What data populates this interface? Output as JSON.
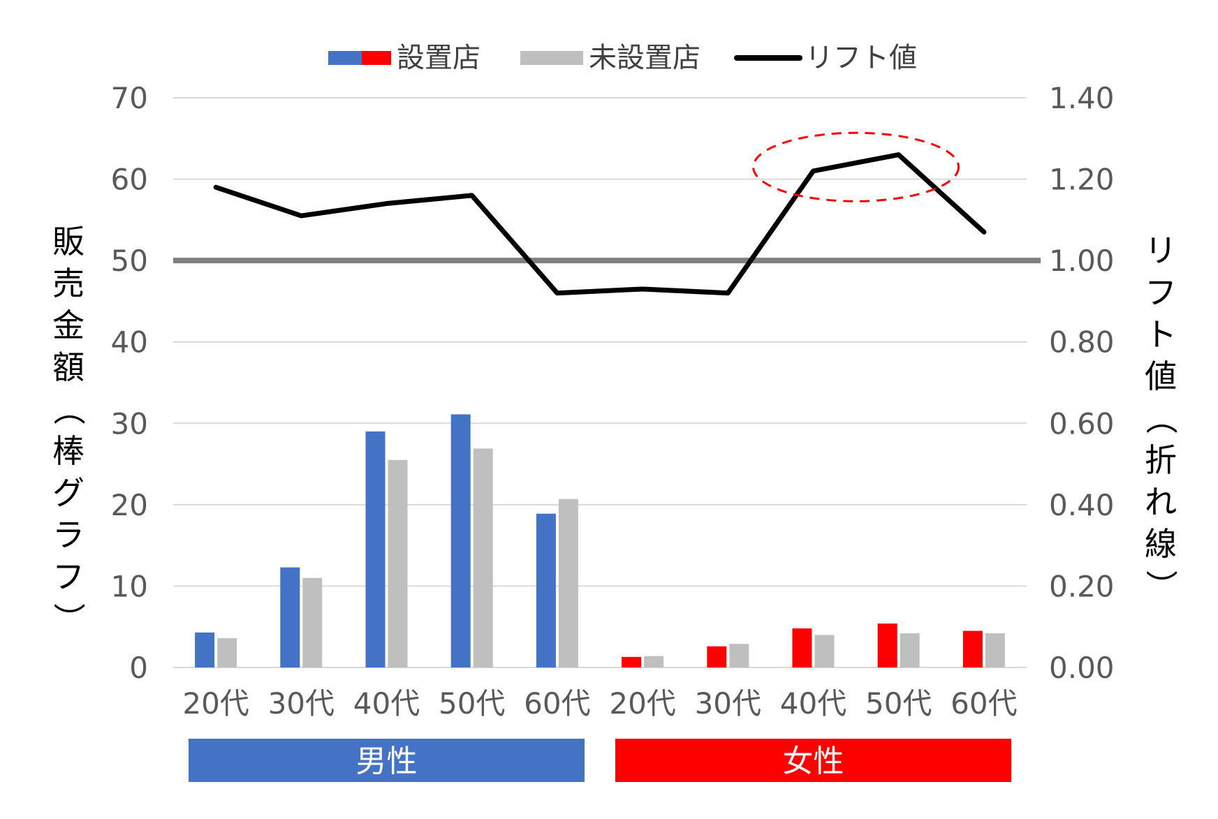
{
  "chart_data": {
    "type": "bar",
    "categories": [
      "20代",
      "30代",
      "40代",
      "50代",
      "60代",
      "20代",
      "30代",
      "40代",
      "50代",
      "60代"
    ],
    "groups": [
      {
        "label": "男性",
        "color": "#4472C4",
        "indices": [
          0,
          1,
          2,
          3,
          4
        ]
      },
      {
        "label": "女性",
        "color": "#FF0000",
        "indices": [
          5,
          6,
          7,
          8,
          9
        ]
      }
    ],
    "series": [
      {
        "name": "設置店",
        "type": "bar",
        "axis": "left",
        "colors": [
          "#4472C4",
          "#FF0000"
        ],
        "values": [
          4.3,
          12.3,
          29.0,
          31.1,
          18.9,
          1.3,
          2.6,
          4.8,
          5.4,
          4.5
        ]
      },
      {
        "name": "未設置店",
        "type": "bar",
        "axis": "left",
        "color": "#BFBFBF",
        "values": [
          3.6,
          11.0,
          25.5,
          26.9,
          20.7,
          1.4,
          2.9,
          4.0,
          4.2,
          4.2
        ]
      },
      {
        "name": "リフト値",
        "type": "line",
        "axis": "right",
        "color": "#000000",
        "values": [
          1.18,
          1.11,
          1.14,
          1.16,
          0.92,
          0.93,
          0.92,
          1.22,
          1.26,
          1.07
        ]
      }
    ],
    "y_left": {
      "label": "販売金額（棒グラフ）",
      "ylim": [
        0,
        70
      ],
      "ticks": [
        "0",
        "10",
        "20",
        "30",
        "40",
        "50",
        "60",
        "70"
      ]
    },
    "y_right": {
      "label": "リフト値（折れ線）",
      "ylim": [
        0,
        1.4
      ],
      "ticks": [
        "0.00",
        "0.20",
        "0.40",
        "0.60",
        "0.80",
        "1.00",
        "1.20",
        "1.40"
      ]
    },
    "reference_line": {
      "axis": "right",
      "value": 1.0,
      "color": "#808080"
    },
    "highlight": {
      "type": "dashed-ellipse",
      "color": "#FF0000",
      "around_indices": [
        7,
        8
      ]
    },
    "legend": {
      "position": "top"
    },
    "grid": true
  }
}
